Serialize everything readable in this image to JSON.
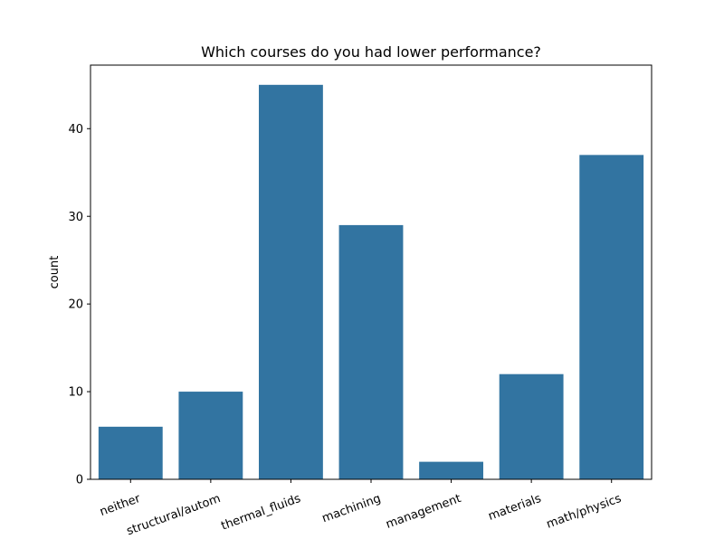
{
  "chart_data": {
    "type": "bar",
    "title": "Which courses do you had lower performance?",
    "xlabel": "",
    "ylabel": "count",
    "categories": [
      "neither",
      "structural/autom",
      "thermal_fluids",
      "machining",
      "management",
      "materials",
      "math/physics"
    ],
    "values": [
      6,
      10,
      45,
      29,
      2,
      12,
      37
    ],
    "ylim": [
      0,
      47.25
    ],
    "yticks": [
      0,
      10,
      20,
      30,
      40
    ],
    "bar_color": "#3274a1",
    "grid": false,
    "x_tick_rotation": "slanted"
  }
}
